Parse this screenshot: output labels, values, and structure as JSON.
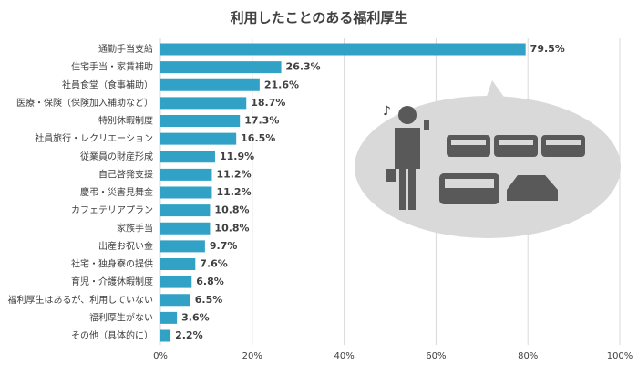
{
  "chart_data": {
    "type": "bar",
    "orientation": "horizontal",
    "title": "利用したことのある福利厚生",
    "categories": [
      "通勤手当支給",
      "住宅手当・家賃補助",
      "社員食堂（食事補助）",
      "医療・保険（保険加入補助など）",
      "特別休暇制度",
      "社員旅行・レクリエーション",
      "従業員の財産形成",
      "自己啓発支援",
      "慶弔・災害見舞金",
      "カフェテリアプラン",
      "家族手当",
      "出産お祝い金",
      "社宅・独身寮の提供",
      "育児・介護休暇制度",
      "福利厚生はあるが、利用していない",
      "福利厚生がない",
      "その他（具体的に）"
    ],
    "values": [
      79.5,
      26.3,
      21.6,
      18.7,
      17.3,
      16.5,
      11.9,
      11.2,
      11.2,
      10.8,
      10.8,
      9.7,
      7.6,
      6.8,
      6.5,
      3.6,
      2.2
    ],
    "value_labels": [
      "79.5%",
      "26.3%",
      "21.6%",
      "18.7%",
      "17.3%",
      "16.5%",
      "11.9%",
      "11.2%",
      "11.2%",
      "10.8%",
      "10.8%",
      "9.7%",
      "7.6%",
      "6.8%",
      "6.5%",
      "3.6%",
      "2.2%"
    ],
    "color": "#31a2c6",
    "xlim": [
      0,
      100
    ],
    "xticks": [
      {
        "value": 0,
        "label": "0%"
      },
      {
        "value": 20,
        "label": "20%"
      },
      {
        "value": 40,
        "label": "40%"
      },
      {
        "value": 60,
        "label": "60%"
      },
      {
        "value": 80,
        "label": "80%"
      },
      {
        "value": 100,
        "label": "100%"
      }
    ],
    "grid": true
  }
}
